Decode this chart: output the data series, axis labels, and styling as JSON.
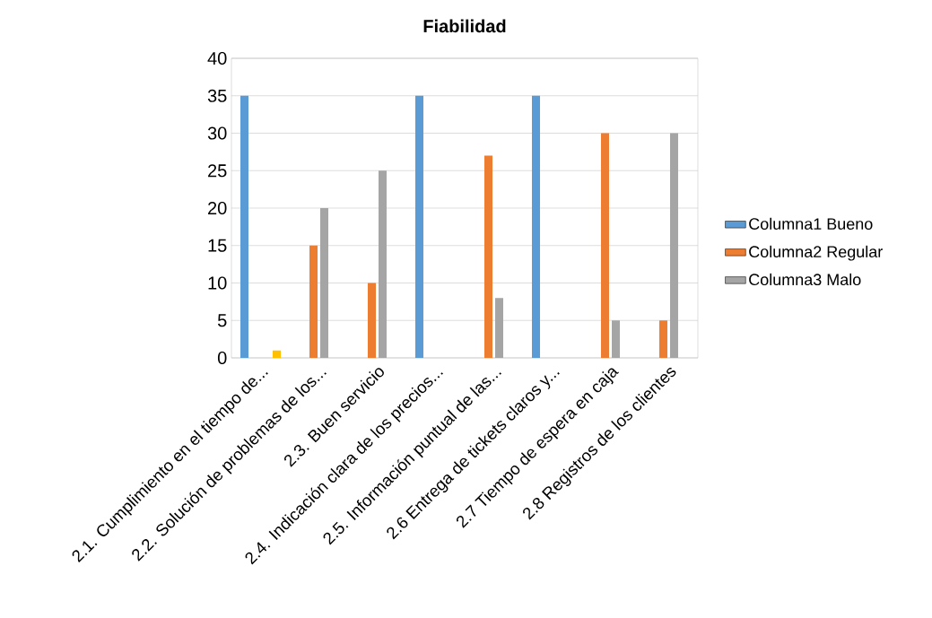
{
  "chart_data": {
    "type": "bar",
    "title": "Fiabilidad",
    "categories": [
      "2.1. Cumplimiento en el tiempo de...",
      "2.2. Solución de problemas de los...",
      "2.3. Buen servicio",
      "2.4. Indicación clara de los precios...",
      "2.5. Información puntual de las...",
      "2.6 Entrega de tickets claros y...",
      "2.7 Tiempo de espera en caja",
      "2.8 Registros de los clientes"
    ],
    "series": [
      {
        "name": "Columna1 Bueno",
        "color": "#5b9bd5",
        "values": [
          35,
          null,
          null,
          35,
          null,
          35,
          null,
          null
        ]
      },
      {
        "name": "Columna2 Regular",
        "color": "#ed7d31",
        "values": [
          null,
          15,
          10,
          null,
          27,
          null,
          30,
          5
        ]
      },
      {
        "name": "Columna3 Malo",
        "color": "#a5a5a5",
        "values": [
          null,
          20,
          25,
          null,
          8,
          null,
          5,
          30
        ]
      },
      {
        "color": "#ffc000",
        "values": [
          1,
          null,
          null,
          null,
          null,
          null,
          null,
          null
        ]
      }
    ],
    "ylim": [
      0,
      40
    ],
    "yticks": [
      0,
      5,
      10,
      15,
      20,
      25,
      30,
      35,
      40
    ],
    "grid": "y",
    "legend": "right"
  }
}
